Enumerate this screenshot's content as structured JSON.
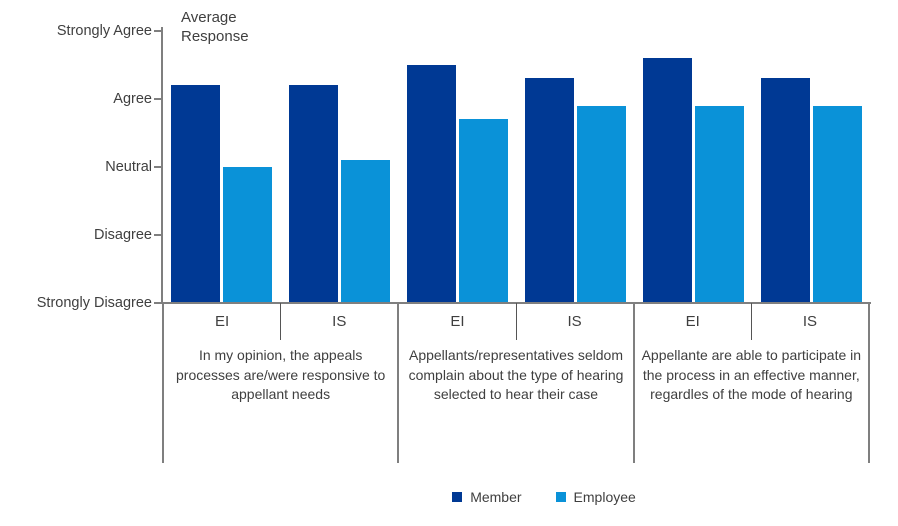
{
  "chart_data": {
    "type": "bar",
    "title": "Average\nResponse",
    "y_axis": {
      "min": 1,
      "max": 5,
      "ticks": [
        {
          "value": 5,
          "label": "Strongly Agree"
        },
        {
          "value": 4,
          "label": "Agree"
        },
        {
          "value": 3,
          "label": "Neutral"
        },
        {
          "value": 2,
          "label": "Disagree"
        },
        {
          "value": 1,
          "label": "Strongly Disagree"
        }
      ]
    },
    "series": [
      {
        "name": "Member",
        "color": "#003994"
      },
      {
        "name": "Employee",
        "color": "#0a92d8"
      }
    ],
    "groups": [
      {
        "question": "In my opinion, the appeals processes are/were responsive to appellant needs",
        "subgroups": [
          {
            "label": "EI",
            "values": [
              4.2,
              3.0
            ]
          },
          {
            "label": "IS",
            "values": [
              4.2,
              3.1
            ]
          }
        ]
      },
      {
        "question": "Appellants/representatives seldom complain about the type of hearing selected to hear their case",
        "subgroups": [
          {
            "label": "EI",
            "values": [
              4.5,
              3.7
            ]
          },
          {
            "label": "IS",
            "values": [
              4.3,
              3.9
            ]
          }
        ]
      },
      {
        "question": "Appellante are able to participate in the process in an effective manner, regardles of the mode of hearing",
        "subgroups": [
          {
            "label": "EI",
            "values": [
              4.6,
              3.9
            ]
          },
          {
            "label": "IS",
            "values": [
              4.3,
              3.9
            ]
          }
        ]
      }
    ],
    "layout": {
      "grid": false,
      "legend_position": "bottom",
      "axis_color": "#7f7f7f",
      "text_color": "#3f3f3f",
      "background": "#ffffff"
    }
  }
}
